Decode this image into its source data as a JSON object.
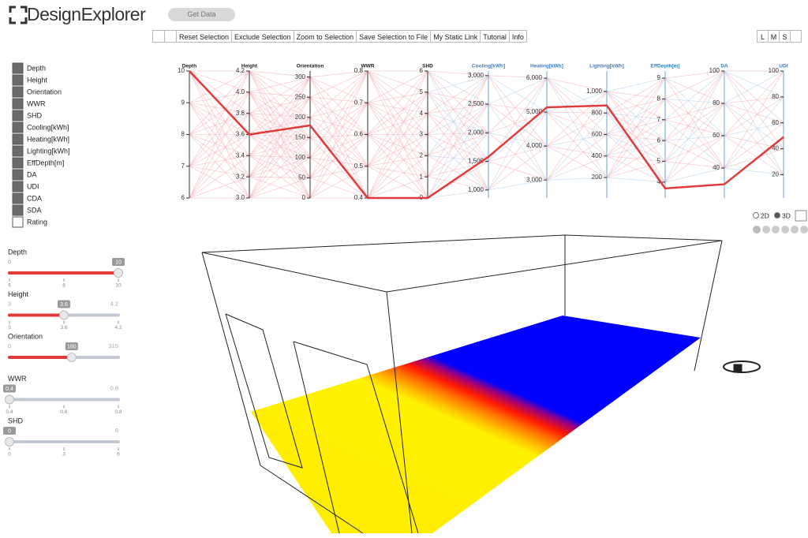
{
  "header": {
    "logo": "DesignExplorer",
    "get_data": "Get Data"
  },
  "toolbar": {
    "buttons": [
      "Reset Selection",
      "Exclude Selection",
      "Zoom to Selection",
      "Save Selection to File",
      "My Static Link",
      "Tutorial",
      "Info"
    ],
    "size_buttons": [
      "L",
      "M",
      "S"
    ]
  },
  "legend": [
    "Depth",
    "Height",
    "Orientation",
    "WWR",
    "SHD",
    "Cooling[kWh]",
    "Heating[kWh]",
    "Lighting[kWh]",
    "EffDepth[m]",
    "DA",
    "UDI",
    "CDA",
    "SDA",
    "Rating"
  ],
  "parallel": {
    "axes": [
      {
        "name": "Depth",
        "color": "#222222",
        "ylim": [
          6,
          10
        ],
        "ticks": [
          6,
          7,
          8,
          9,
          10
        ],
        "selected": 10
      },
      {
        "name": "Height",
        "color": "#222222",
        "ylim": [
          3,
          4.2
        ],
        "ticks": [
          {
            "value": 3,
            "label": "3.0"
          },
          3.2,
          3.4,
          3.6,
          3.8,
          {
            "value": 4,
            "label": "4.0"
          },
          4.2
        ],
        "selected": 3.6
      },
      {
        "name": "Orientation",
        "color": "#222222",
        "ylim": [
          0,
          315
        ],
        "ticks": [
          0,
          50,
          100,
          150,
          200,
          250,
          300
        ],
        "selected": 180
      },
      {
        "name": "WWR",
        "color": "#222222",
        "ylim": [
          0.4,
          0.8
        ],
        "ticks": [
          0.4,
          0.5,
          0.6,
          0.7,
          0.8
        ],
        "selected": 0.4
      },
      {
        "name": "SHD",
        "color": "#222222",
        "ylim": [
          0,
          6
        ],
        "ticks": [
          0,
          1,
          2,
          3,
          4,
          5,
          6
        ],
        "selected": 0
      },
      {
        "name": "Cooling[kWh]",
        "color": "#3a7fc1",
        "ylim": [
          860,
          3080
        ],
        "ticks": [
          {
            "value": 1000,
            "label": "1,000"
          },
          {
            "value": 1500,
            "label": "1,500"
          },
          {
            "value": 2000,
            "label": "2,000"
          },
          {
            "value": 2500,
            "label": "2,500"
          },
          {
            "value": 3000,
            "label": "3,000"
          }
        ],
        "selected": 1580
      },
      {
        "name": "Heating[kWh]",
        "color": "#3a7fc1",
        "ylim": [
          2470,
          6210
        ],
        "ticks": [
          {
            "value": 3000,
            "label": "3,000"
          },
          {
            "value": 4000,
            "label": "4,000"
          },
          {
            "value": 5000,
            "label": "5,000"
          },
          {
            "value": 6000,
            "label": "6,000"
          }
        ],
        "selected": 5140
      },
      {
        "name": "Lighting[kWh]",
        "color": "#3a7fc1",
        "ylim": [
          10,
          1190
        ],
        "ticks": [
          200,
          400,
          600,
          800,
          {
            "value": 1000,
            "label": "1,000"
          }
        ],
        "selected": 870
      },
      {
        "name": "EffDepth[m]",
        "color": "#3a7fc1",
        "ylim": [
          3.24,
          9.34
        ],
        "ticks": [
          4,
          5,
          6,
          7,
          8,
          9
        ],
        "selected": 3.7
      },
      {
        "name": "DA",
        "color": "#3a7fc1",
        "ylim": [
          21.5,
          100
        ],
        "ticks": [
          40,
          60,
          80,
          100
        ],
        "selected": 30
      },
      {
        "name": "UDI",
        "color": "#3a7fc1",
        "ylim": [
          2,
          100
        ],
        "ticks": [
          20,
          40,
          60,
          80,
          100
        ],
        "selected": 49
      }
    ]
  },
  "sliders": [
    {
      "name": "Depth",
      "min": 6,
      "max": 10,
      "value": 10,
      "ticks": [
        6,
        8,
        10
      ]
    },
    {
      "name": "Height",
      "min": 3,
      "max": 4.2,
      "value": 3.6,
      "ticks": [
        3,
        3.6,
        4.2
      ]
    },
    {
      "name": "Orientation",
      "min": 0,
      "max": 315,
      "value": 180,
      "ticks": []
    },
    {
      "name": "WWR",
      "min": 0.4,
      "max": 0.8,
      "value": 0.4,
      "ticks": [
        0.4,
        0.6,
        0.8
      ]
    },
    {
      "name": "SHD",
      "min": 0,
      "max": 6,
      "value": 0,
      "ticks": [
        0,
        3,
        6
      ]
    }
  ],
  "view": {
    "options": [
      "2D",
      "3D"
    ],
    "selected": "3D"
  }
}
